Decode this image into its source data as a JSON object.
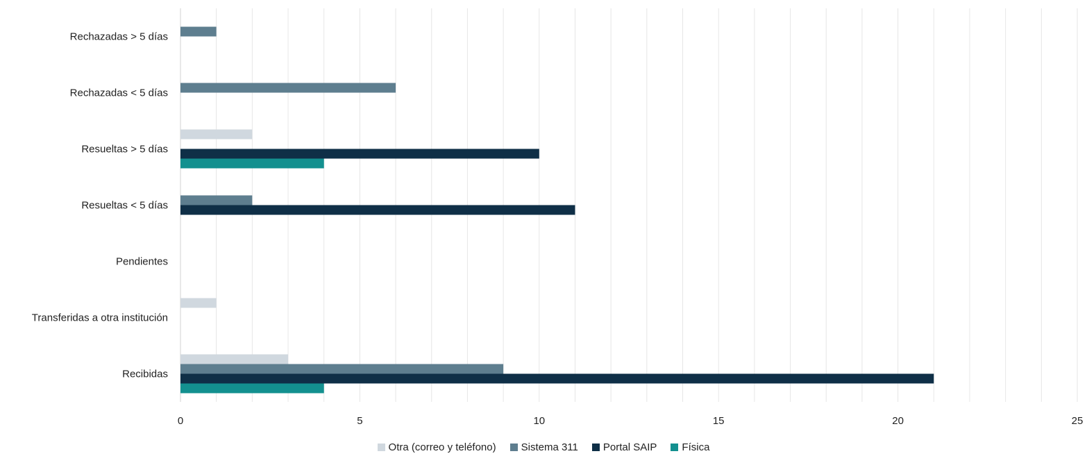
{
  "chart_data": {
    "type": "bar",
    "orientation": "horizontal",
    "categories": [
      "Recibidas",
      "Transferidas a otra institución",
      "Pendientes",
      "Resueltas < 5 días",
      "Resueltas > 5 días",
      "Rechazadas < 5 días",
      "Rechazadas > 5 días"
    ],
    "series": [
      {
        "name": "Otra (correo y teléfono)",
        "color": "#d0d8df",
        "values": [
          3,
          1,
          0,
          0,
          2,
          0,
          0
        ]
      },
      {
        "name": "Sistema 311",
        "color": "#5e7e8f",
        "values": [
          9,
          0,
          0,
          2,
          0,
          6,
          1
        ]
      },
      {
        "name": "Portal SAIP",
        "color": "#0f2f47",
        "values": [
          21,
          0,
          0,
          11,
          10,
          0,
          0
        ]
      },
      {
        "name": "Física",
        "color": "#13908f",
        "values": [
          4,
          0,
          0,
          0,
          4,
          0,
          0
        ]
      }
    ],
    "xlim": [
      0,
      25
    ],
    "x_ticks": [
      "0",
      "5",
      "10",
      "15",
      "20",
      "25"
    ],
    "grid": true,
    "legend_position": "bottom"
  }
}
